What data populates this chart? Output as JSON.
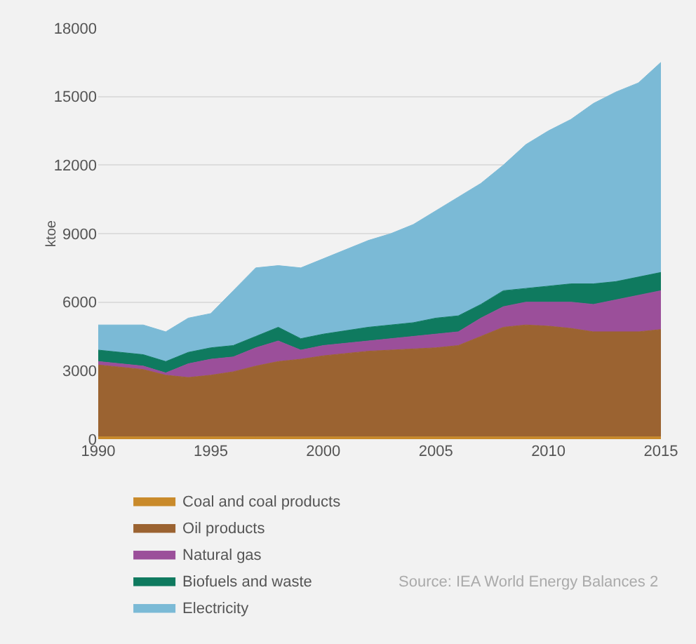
{
  "chart_data": {
    "type": "area",
    "stacked": true,
    "ylabel": "ktoe",
    "x": [
      1990,
      1991,
      1992,
      1993,
      1994,
      1995,
      1996,
      1997,
      1998,
      1999,
      2000,
      2001,
      2002,
      2003,
      2004,
      2005,
      2006,
      2007,
      2008,
      2009,
      2010,
      2011,
      2012,
      2013,
      2014,
      2015
    ],
    "series": [
      {
        "name": "Coal and coal products",
        "color": "#c98a2b",
        "values": [
          100,
          100,
          100,
          100,
          100,
          100,
          100,
          100,
          100,
          100,
          100,
          100,
          100,
          100,
          100,
          100,
          100,
          100,
          100,
          100,
          100,
          100,
          100,
          100,
          100,
          100
        ]
      },
      {
        "name": "Oil products",
        "color": "#9b6331",
        "values": [
          3150,
          3050,
          2950,
          2700,
          2600,
          2700,
          2850,
          3100,
          3300,
          3400,
          3550,
          3650,
          3750,
          3800,
          3850,
          3900,
          4000,
          4400,
          4800,
          4900,
          4850,
          4750,
          4600,
          4600,
          4600,
          4700
        ]
      },
      {
        "name": "Natural gas",
        "color": "#9b4f9a",
        "values": [
          150,
          150,
          150,
          100,
          600,
          700,
          650,
          800,
          900,
          400,
          450,
          450,
          450,
          500,
          550,
          600,
          600,
          800,
          900,
          1000,
          1050,
          1150,
          1200,
          1400,
          1600,
          1700
        ]
      },
      {
        "name": "Biofuels and waste",
        "color": "#0f7a5f",
        "values": [
          500,
          500,
          500,
          500,
          500,
          500,
          500,
          500,
          600,
          500,
          500,
          550,
          600,
          600,
          600,
          700,
          700,
          600,
          700,
          600,
          700,
          800,
          900,
          800,
          800,
          800
        ]
      },
      {
        "name": "Electricity",
        "color": "#7bbad6",
        "values": [
          1100,
          1200,
          1300,
          1300,
          1500,
          1500,
          2400,
          3000,
          2700,
          3100,
          3300,
          3550,
          3800,
          4000,
          4300,
          4700,
          5200,
          5300,
          5500,
          6300,
          6800,
          7200,
          7900,
          8300,
          8500,
          9200
        ]
      }
    ],
    "xlim": [
      1990,
      2015
    ],
    "xticks": [
      1990,
      1995,
      2000,
      2005,
      2010,
      2015
    ],
    "ylim": [
      0,
      18000
    ],
    "yticks": [
      0,
      3000,
      6000,
      9000,
      12000,
      15000,
      18000
    ],
    "grid": "y",
    "legend": "bottom",
    "annotations": [
      "Source: IEA World Energy Balances 2"
    ]
  }
}
